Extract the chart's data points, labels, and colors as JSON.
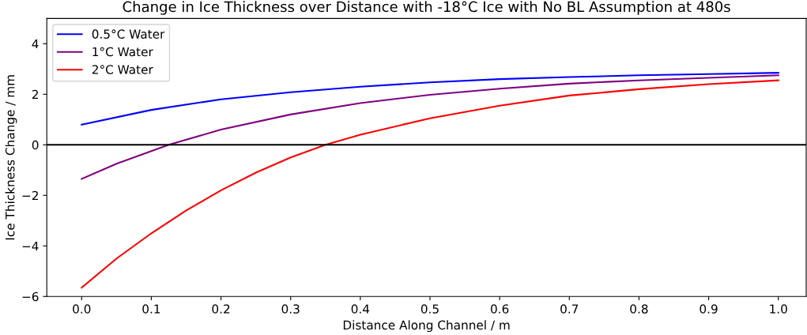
{
  "chart_data": {
    "type": "line",
    "title": "Change in Ice Thickness over Distance with -18°C Ice with No BL Assumption at 480s",
    "xlabel": "Distance Along Channel / m",
    "ylabel": "Ice Thickness Change / mm",
    "series": [
      {
        "name": "0.5°C Water",
        "color": "#0000ff",
        "x": [
          0,
          0.1,
          0.2,
          0.3,
          0.4,
          0.5,
          0.6,
          0.7,
          0.8,
          0.9,
          1.0
        ],
        "values": [
          0.8,
          1.38,
          1.8,
          2.08,
          2.3,
          2.47,
          2.6,
          2.68,
          2.75,
          2.8,
          2.85
        ]
      },
      {
        "name": "1°C Water",
        "color": "#800080",
        "x": [
          0,
          0.05,
          0.1,
          0.125,
          0.2,
          0.3,
          0.4,
          0.5,
          0.6,
          0.7,
          0.8,
          0.9,
          1.0
        ],
        "values": [
          -1.35,
          -0.75,
          -0.25,
          0,
          0.6,
          1.2,
          1.65,
          1.98,
          2.22,
          2.42,
          2.55,
          2.65,
          2.75
        ]
      },
      {
        "name": "2°C Water",
        "color": "#ff0000",
        "x": [
          0,
          0.05,
          0.1,
          0.15,
          0.2,
          0.25,
          0.3,
          0.35,
          0.4,
          0.5,
          0.6,
          0.7,
          0.8,
          0.9,
          1.0
        ],
        "values": [
          -5.65,
          -4.5,
          -3.5,
          -2.6,
          -1.8,
          -1.1,
          -0.5,
          0,
          0.4,
          1.05,
          1.55,
          1.95,
          2.2,
          2.4,
          2.55
        ]
      }
    ],
    "xlim": [
      -0.05,
      1.04
    ],
    "ylim": [
      -6,
      5
    ],
    "xticks": [
      {
        "value": 0,
        "label": "0.0"
      },
      {
        "value": 0.1,
        "label": "0.1"
      },
      {
        "value": 0.2,
        "label": "0.2"
      },
      {
        "value": 0.3,
        "label": "0.3"
      },
      {
        "value": 0.4,
        "label": "0.4"
      },
      {
        "value": 0.5,
        "label": "0.5"
      },
      {
        "value": 0.6,
        "label": "0.6"
      },
      {
        "value": 0.7,
        "label": "0.7"
      },
      {
        "value": 0.8,
        "label": "0.8"
      },
      {
        "value": 0.9,
        "label": "0.9"
      },
      {
        "value": 1,
        "label": "1.0"
      }
    ],
    "yticks": [
      {
        "value": -6,
        "label": "−6"
      },
      {
        "value": -4,
        "label": "−4"
      },
      {
        "value": -2,
        "label": "−2"
      },
      0,
      2,
      4
    ],
    "ref_lines": [
      {
        "axis": "y",
        "value": 0,
        "color": "#000000"
      }
    ],
    "legend": "upper left",
    "grid": false
  }
}
